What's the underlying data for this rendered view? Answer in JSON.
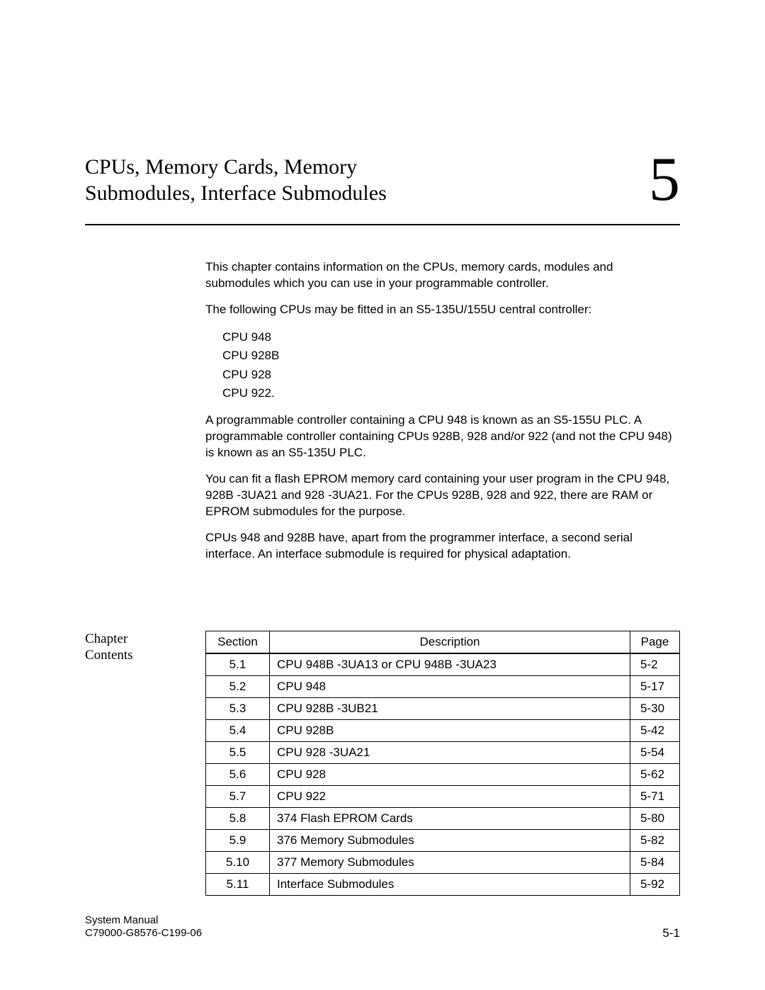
{
  "header": {
    "title_line1": "CPUs, Memory Cards, Memory",
    "title_line2": "Submodules, Interface Submodules",
    "chapter_number": "5"
  },
  "intro": {
    "p1": "This chapter contains information on the CPUs, memory cards, modules and submodules which you can use in your programmable controller.",
    "p2": "The following CPUs may be fitted in an S5-135U/155U central controller:",
    "cpu_list": [
      "CPU 948",
      "CPU 928B",
      "CPU 928",
      "CPU 922."
    ],
    "p3": "A programmable controller containing a CPU 948 is known as an S5-155U PLC. A programmable controller containing CPUs 928B, 928 and/or 922 (and not the CPU 948) is known as an S5-135U PLC.",
    "p4": "You can fit a flash EPROM memory card containing your user program in the CPU 948, 928B -3UA21 and 928 -3UA21. For the CPUs 928B, 928 and 922, there are RAM or EPROM submodules for the purpose.",
    "p5": "CPUs 948 and 928B have, apart from the programmer interface, a second serial interface. An interface submodule is required for physical adaptation."
  },
  "toc": {
    "side_label_line1": "Chapter",
    "side_label_line2": "Contents",
    "columns": [
      "Section",
      "Description",
      "Page"
    ],
    "rows": [
      [
        "5.1",
        "CPU 948B -3UA13 or CPU 948B -3UA23",
        "5-2"
      ],
      [
        "5.2",
        "CPU 948",
        "5-17"
      ],
      [
        "5.3",
        "CPU 928B -3UB21",
        "5-30"
      ],
      [
        "5.4",
        "CPU 928B",
        "5-42"
      ],
      [
        "5.5",
        "CPU 928 -3UA21",
        "5-54"
      ],
      [
        "5.6",
        "CPU 928",
        "5-62"
      ],
      [
        "5.7",
        "CPU 922",
        "5-71"
      ],
      [
        "5.8",
        "374 Flash EPROM Cards",
        "5-80"
      ],
      [
        "5.9",
        "376 Memory Submodules",
        "5-82"
      ],
      [
        "5.10",
        "377 Memory Submodules",
        "5-84"
      ],
      [
        "5.11",
        "Interface Submodules",
        "5-92"
      ]
    ]
  },
  "footer": {
    "line1": "System Manual",
    "line2": "C79000-G8576-C199-06",
    "page": "5-1"
  },
  "style": {
    "page_bg": "#ffffff",
    "text_color": "#000000",
    "rule_color": "#000000",
    "title_fontsize_pt": 22,
    "chapter_number_fontsize_pt": 66,
    "body_fontsize_pt": 13,
    "table_fontsize_pt": 13,
    "footer_fontsize_pt": 11
  }
}
